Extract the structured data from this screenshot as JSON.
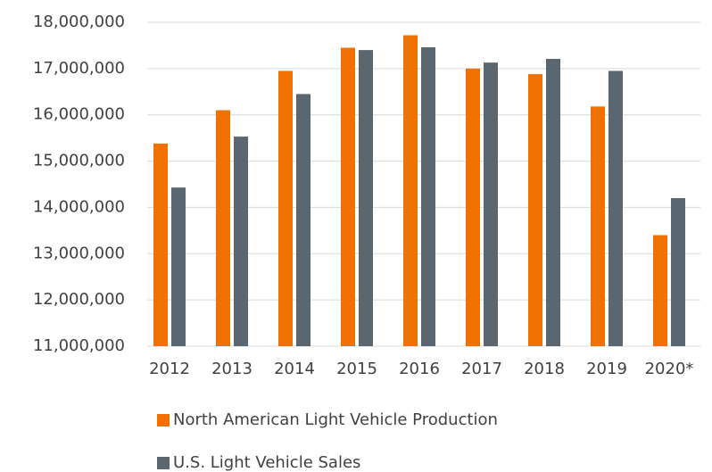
{
  "chart_data": {
    "type": "bar",
    "categories": [
      "2012",
      "2013",
      "2014",
      "2015",
      "2016",
      "2017",
      "2018",
      "2019",
      "2020*"
    ],
    "series": [
      {
        "name": "North American Light Vehicle Production",
        "color": "#f07000",
        "values": [
          15380000,
          16100000,
          16950000,
          17450000,
          17720000,
          17000000,
          16880000,
          16180000,
          13400000
        ]
      },
      {
        "name": "U.S. Light Vehicle Sales",
        "color": "#5a6670",
        "values": [
          14430000,
          15530000,
          16450000,
          17400000,
          17460000,
          17130000,
          17210000,
          16950000,
          14200000
        ]
      }
    ],
    "ylim": [
      11000000,
      18000000
    ],
    "yticks": [
      {
        "value": 11000000,
        "label": "11,000,000"
      },
      {
        "value": 12000000,
        "label": "12,000,000"
      },
      {
        "value": 13000000,
        "label": "13,000,000"
      },
      {
        "value": 14000000,
        "label": "14,000,000"
      },
      {
        "value": 15000000,
        "label": "15,000,000"
      },
      {
        "value": 16000000,
        "label": "16,000,000"
      },
      {
        "value": 17000000,
        "label": "17,000,000"
      },
      {
        "value": 18000000,
        "label": "18,000,000"
      }
    ],
    "grid": true,
    "legend": "bottom"
  }
}
